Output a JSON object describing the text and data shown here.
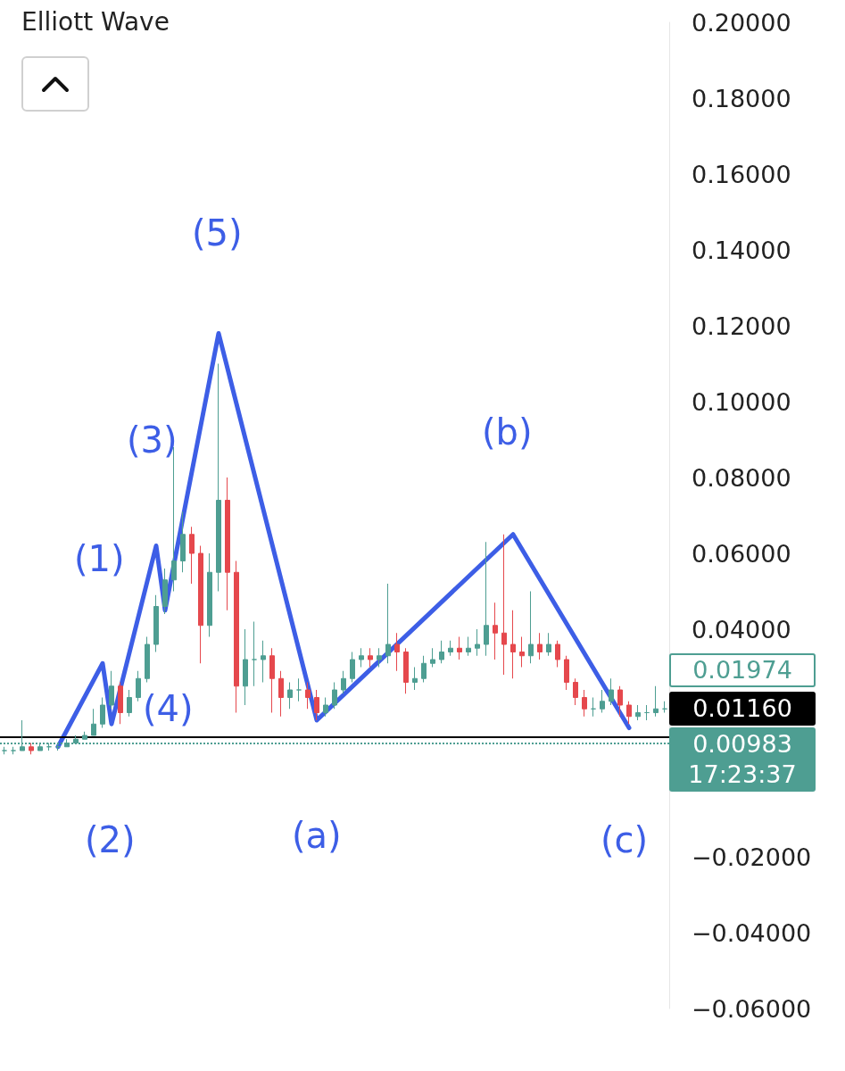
{
  "chart_data": {
    "type": "candlestick",
    "title": "Elliott Wave",
    "categories": [
      null,
      null,
      null,
      null,
      null,
      null,
      null,
      null,
      null,
      null,
      null,
      null,
      null,
      null,
      null,
      null,
      null,
      null,
      null,
      null,
      null,
      null,
      null,
      null,
      null,
      null,
      null,
      null,
      null,
      null,
      null,
      null,
      null,
      null,
      null,
      null,
      null,
      null,
      null,
      null,
      null,
      null,
      null,
      null,
      null,
      null,
      null,
      null,
      null,
      null,
      null,
      null,
      null,
      null,
      null,
      null,
      null,
      null,
      null,
      null,
      null,
      null,
      null,
      null,
      null,
      null,
      null,
      null,
      null,
      null,
      null,
      null,
      null,
      null,
      null
    ],
    "ohlc": [
      [
        0.008,
        0.009,
        0.007,
        0.008
      ],
      [
        0.008,
        0.009,
        0.007,
        0.008
      ],
      [
        0.008,
        0.016,
        0.008,
        0.009
      ],
      [
        0.009,
        0.01,
        0.007,
        0.008
      ],
      [
        0.008,
        0.01,
        0.008,
        0.009
      ],
      [
        0.009,
        0.01,
        0.008,
        0.009
      ],
      [
        0.009,
        0.01,
        0.008,
        0.009
      ],
      [
        0.009,
        0.011,
        0.009,
        0.01
      ],
      [
        0.01,
        0.012,
        0.01,
        0.011
      ],
      [
        0.011,
        0.013,
        0.011,
        0.012
      ],
      [
        0.012,
        0.019,
        0.012,
        0.015
      ],
      [
        0.015,
        0.022,
        0.014,
        0.02
      ],
      [
        0.02,
        0.029,
        0.019,
        0.025
      ],
      [
        0.025,
        0.026,
        0.015,
        0.018
      ],
      [
        0.018,
        0.024,
        0.017,
        0.022
      ],
      [
        0.022,
        0.029,
        0.021,
        0.027
      ],
      [
        0.027,
        0.038,
        0.026,
        0.036
      ],
      [
        0.036,
        0.049,
        0.034,
        0.046
      ],
      [
        0.046,
        0.056,
        0.044,
        0.053
      ],
      [
        0.053,
        0.088,
        0.05,
        0.058
      ],
      [
        0.058,
        0.071,
        0.055,
        0.065
      ],
      [
        0.065,
        0.067,
        0.052,
        0.06
      ],
      [
        0.06,
        0.062,
        0.031,
        0.041
      ],
      [
        0.041,
        0.06,
        0.038,
        0.055
      ],
      [
        0.055,
        0.11,
        0.05,
        0.074
      ],
      [
        0.074,
        0.08,
        0.045,
        0.055
      ],
      [
        0.055,
        0.058,
        0.018,
        0.025
      ],
      [
        0.025,
        0.04,
        0.02,
        0.032
      ],
      [
        0.032,
        0.042,
        0.025,
        0.032
      ],
      [
        0.032,
        0.037,
        0.026,
        0.033
      ],
      [
        0.033,
        0.035,
        0.018,
        0.027
      ],
      [
        0.027,
        0.029,
        0.017,
        0.022
      ],
      [
        0.022,
        0.026,
        0.019,
        0.024
      ],
      [
        0.024,
        0.027,
        0.021,
        0.024
      ],
      [
        0.024,
        0.026,
        0.019,
        0.022
      ],
      [
        0.022,
        0.024,
        0.016,
        0.018
      ],
      [
        0.018,
        0.022,
        0.017,
        0.02
      ],
      [
        0.02,
        0.026,
        0.019,
        0.024
      ],
      [
        0.024,
        0.029,
        0.023,
        0.027
      ],
      [
        0.027,
        0.034,
        0.026,
        0.032
      ],
      [
        0.032,
        0.035,
        0.03,
        0.033
      ],
      [
        0.033,
        0.035,
        0.03,
        0.032
      ],
      [
        0.032,
        0.035,
        0.03,
        0.033
      ],
      [
        0.033,
        0.052,
        0.031,
        0.036
      ],
      [
        0.036,
        0.039,
        0.029,
        0.034
      ],
      [
        0.034,
        0.035,
        0.023,
        0.026
      ],
      [
        0.026,
        0.03,
        0.024,
        0.027
      ],
      [
        0.027,
        0.033,
        0.026,
        0.031
      ],
      [
        0.031,
        0.035,
        0.03,
        0.032
      ],
      [
        0.032,
        0.037,
        0.031,
        0.034
      ],
      [
        0.034,
        0.037,
        0.033,
        0.035
      ],
      [
        0.035,
        0.038,
        0.032,
        0.034
      ],
      [
        0.034,
        0.038,
        0.033,
        0.035
      ],
      [
        0.035,
        0.04,
        0.033,
        0.036
      ],
      [
        0.036,
        0.063,
        0.033,
        0.041
      ],
      [
        0.041,
        0.047,
        0.032,
        0.039
      ],
      [
        0.039,
        0.065,
        0.028,
        0.036
      ],
      [
        0.036,
        0.045,
        0.027,
        0.034
      ],
      [
        0.034,
        0.038,
        0.03,
        0.033
      ],
      [
        0.033,
        0.05,
        0.031,
        0.036
      ],
      [
        0.036,
        0.039,
        0.032,
        0.034
      ],
      [
        0.034,
        0.039,
        0.033,
        0.036
      ],
      [
        0.036,
        0.037,
        0.03,
        0.032
      ],
      [
        0.032,
        0.033,
        0.024,
        0.026
      ],
      [
        0.026,
        0.027,
        0.02,
        0.022
      ],
      [
        0.022,
        0.024,
        0.017,
        0.019
      ],
      [
        0.019,
        0.022,
        0.017,
        0.019
      ],
      [
        0.019,
        0.024,
        0.018,
        0.021
      ],
      [
        0.021,
        0.027,
        0.02,
        0.024
      ],
      [
        0.024,
        0.025,
        0.017,
        0.02
      ],
      [
        0.02,
        0.021,
        0.015,
        0.017
      ],
      [
        0.017,
        0.02,
        0.016,
        0.018
      ],
      [
        0.018,
        0.02,
        0.016,
        0.018
      ],
      [
        0.018,
        0.025,
        0.017,
        0.019
      ],
      [
        0.019,
        0.021,
        0.018,
        0.019
      ]
    ],
    "series": [
      {
        "type": "line",
        "color": "#3d5ee6",
        "marker": "none",
        "values": [
          null,
          null,
          null,
          null,
          null,
          null,
          0.009,
          null,
          null,
          null,
          null,
          0.031,
          0.015,
          null,
          null,
          null,
          null,
          0.062,
          0.045,
          null,
          null,
          null,
          null,
          null,
          0.118,
          null,
          null,
          null,
          null,
          null,
          null,
          null,
          null,
          null,
          null,
          0.016,
          null,
          null,
          null,
          null,
          null,
          null,
          null,
          null,
          null,
          null,
          null,
          null,
          null,
          null,
          null,
          null,
          null,
          null,
          null,
          null,
          null,
          0.065,
          null,
          null,
          null,
          null,
          null,
          null,
          null,
          null,
          null,
          null,
          null,
          null,
          0.014,
          null,
          null,
          null,
          null
        ]
      }
    ],
    "ylim": [
      -0.06,
      0.2
    ],
    "yticks": [
      {
        "value": 0.2,
        "label": "0.20000"
      },
      {
        "value": 0.18,
        "label": "0.18000"
      },
      {
        "value": 0.16,
        "label": "0.16000"
      },
      {
        "value": 0.14,
        "label": "0.14000"
      },
      {
        "value": 0.12,
        "label": "0.12000"
      },
      {
        "value": 0.1,
        "label": "0.10000"
      },
      {
        "value": 0.08,
        "label": "0.08000"
      },
      {
        "value": 0.06,
        "label": "0.06000"
      },
      {
        "value": 0.04,
        "label": "0.04000"
      },
      {
        "value": -0.02,
        "label": "−0.02000"
      },
      {
        "value": -0.04,
        "label": "−0.04000"
      },
      {
        "value": -0.06,
        "label": "−0.06000"
      }
    ],
    "ref_lines": [
      {
        "axis": "y",
        "value": 0.0116,
        "label": "0.01160",
        "color": "#000000",
        "line_style": "solid"
      },
      {
        "axis": "y",
        "value": 0.00983,
        "label": "0.00983",
        "color": "#4e9e92",
        "line_style": "dotted"
      }
    ],
    "annotations": [
      "(1)",
      "(2)",
      "(3)",
      "(4)",
      "(5)",
      "(a)",
      "(b)",
      "(c)",
      "0.01974",
      "17:23:37"
    ],
    "grid": false
  }
}
